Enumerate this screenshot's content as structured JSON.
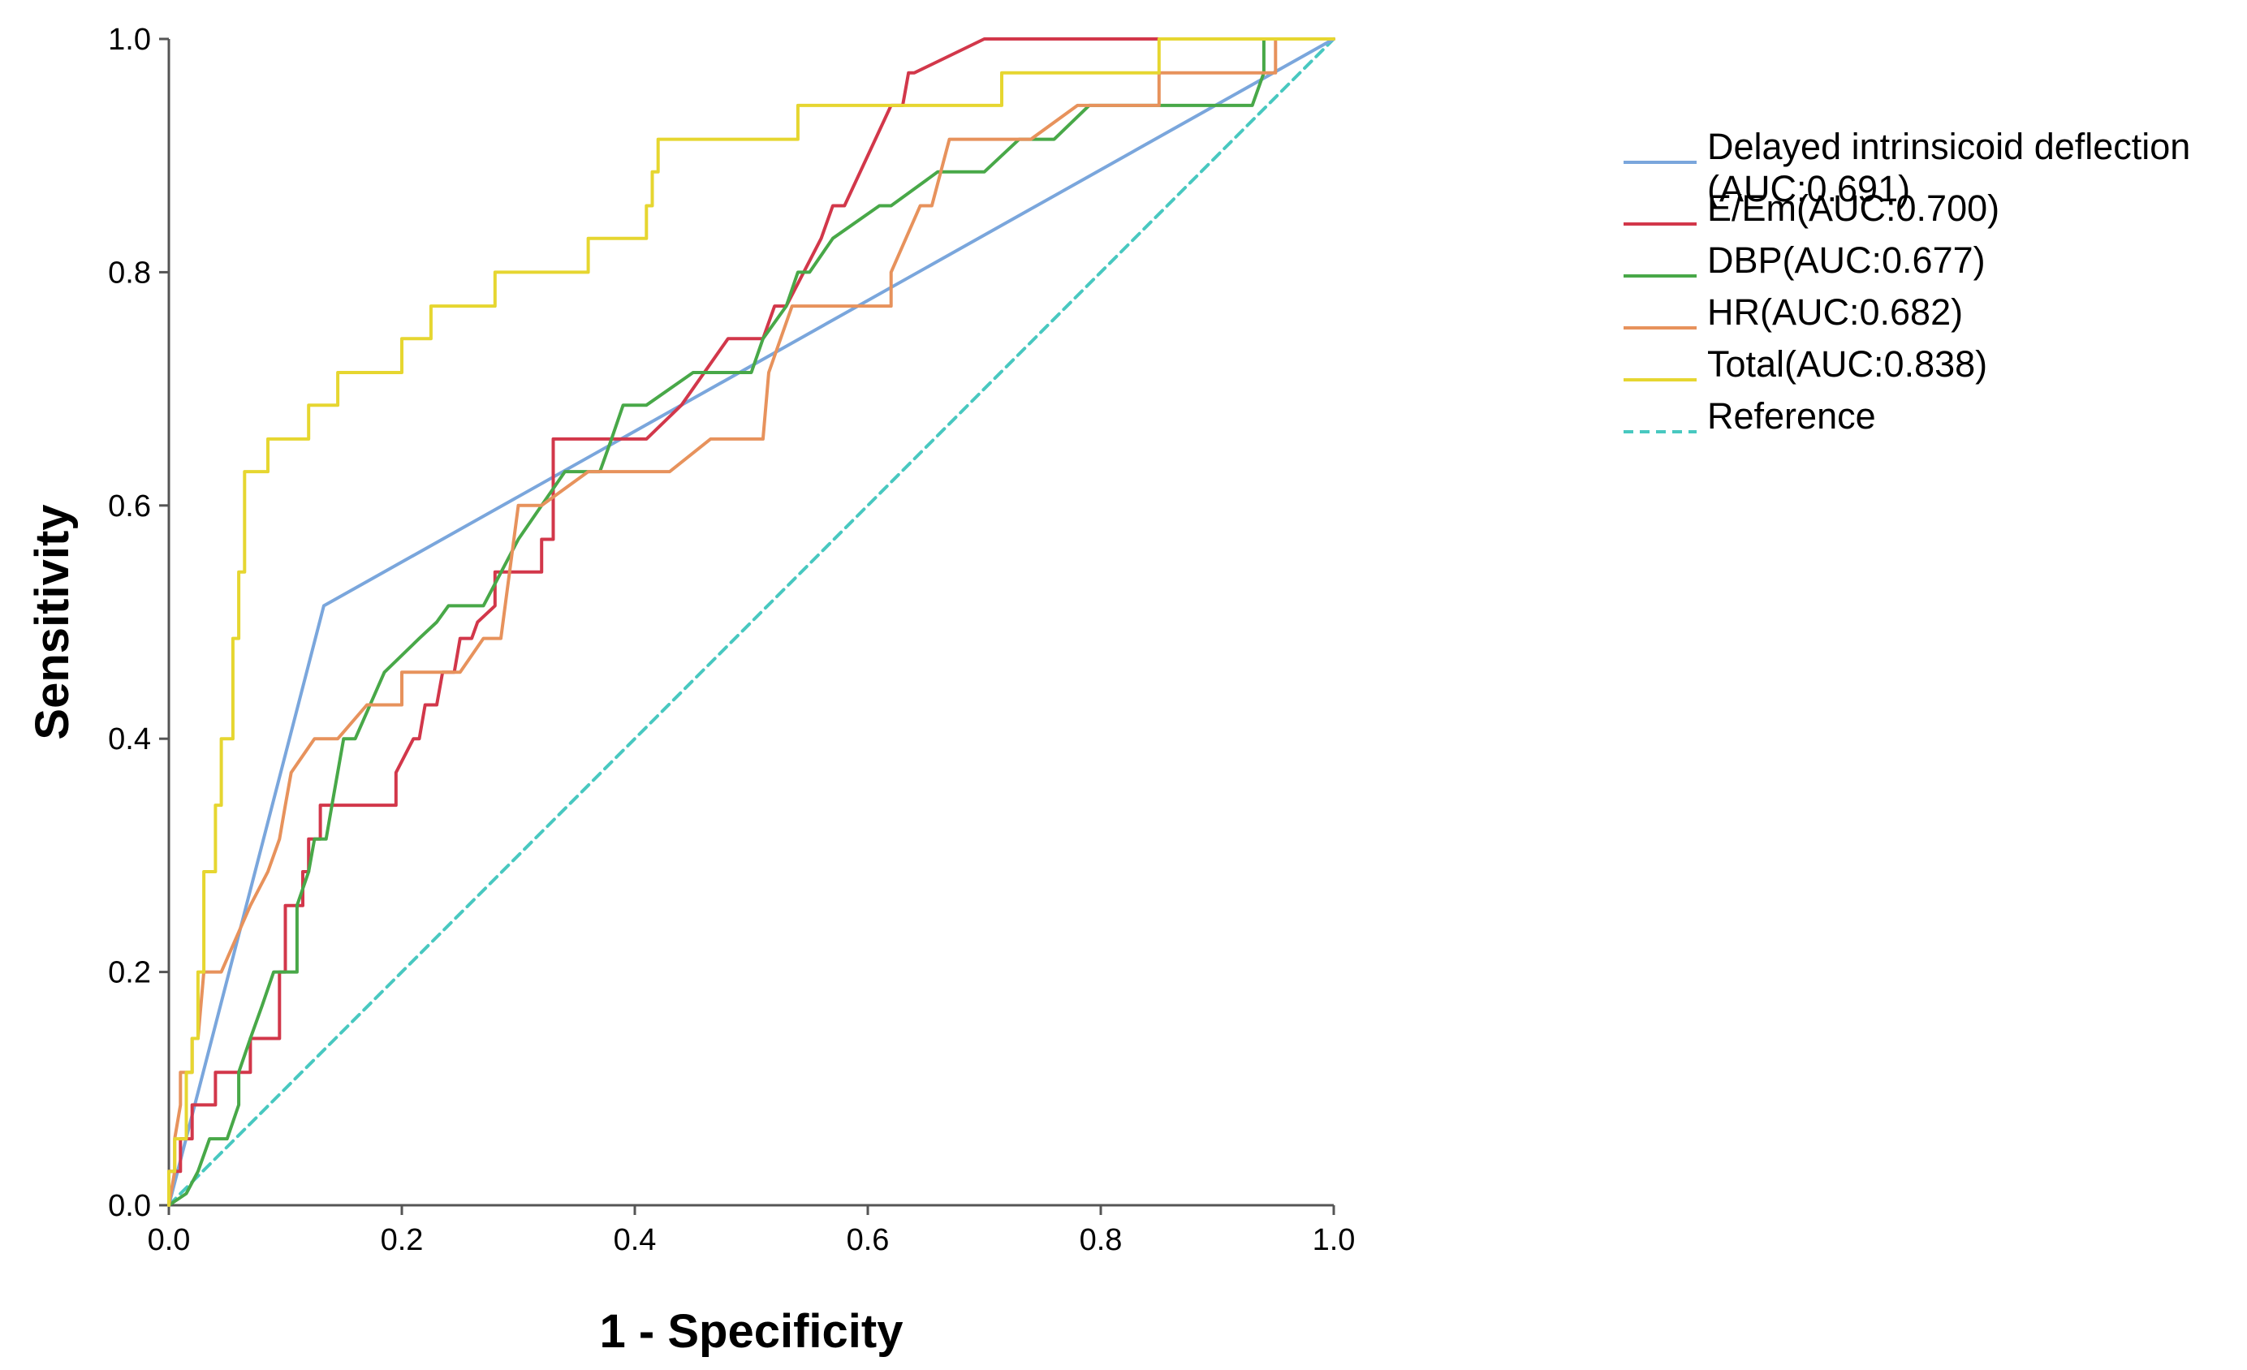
{
  "chart_data": {
    "type": "line",
    "title": "",
    "xlabel": "1 - Specificity",
    "ylabel": "Sensitivity",
    "xlim": [
      0,
      1
    ],
    "ylim": [
      0,
      1
    ],
    "x_ticks": [
      "0.0",
      "0.2",
      "0.4",
      "0.6",
      "0.8",
      "1.0"
    ],
    "y_ticks": [
      "0.0",
      "0.2",
      "0.4",
      "0.6",
      "0.8",
      "1.0"
    ],
    "grid": false,
    "legend_position": "right",
    "series": [
      {
        "name": "Delayed intrinsicoid deflection",
        "name_line2": "(AUC:0.691)",
        "color": "#7aa6dc",
        "dash": false,
        "points": [
          [
            0,
            0
          ],
          [
            0.133,
            0.514
          ],
          [
            1,
            1
          ]
        ]
      },
      {
        "name": "E/Em(AUC:0.700)",
        "color": "#d2374a",
        "dash": false,
        "points": [
          [
            0,
            0
          ],
          [
            0,
            0.029
          ],
          [
            0.01,
            0.029
          ],
          [
            0.01,
            0.057
          ],
          [
            0.02,
            0.057
          ],
          [
            0.02,
            0.086
          ],
          [
            0.04,
            0.086
          ],
          [
            0.04,
            0.114
          ],
          [
            0.07,
            0.114
          ],
          [
            0.07,
            0.143
          ],
          [
            0.095,
            0.143
          ],
          [
            0.095,
            0.2
          ],
          [
            0.1,
            0.2
          ],
          [
            0.1,
            0.257
          ],
          [
            0.115,
            0.257
          ],
          [
            0.115,
            0.286
          ],
          [
            0.12,
            0.286
          ],
          [
            0.12,
            0.314
          ],
          [
            0.13,
            0.314
          ],
          [
            0.13,
            0.343
          ],
          [
            0.195,
            0.343
          ],
          [
            0.195,
            0.371
          ],
          [
            0.21,
            0.4
          ],
          [
            0.215,
            0.4
          ],
          [
            0.22,
            0.429
          ],
          [
            0.23,
            0.429
          ],
          [
            0.235,
            0.457
          ],
          [
            0.245,
            0.457
          ],
          [
            0.25,
            0.486
          ],
          [
            0.26,
            0.486
          ],
          [
            0.265,
            0.5
          ],
          [
            0.28,
            0.514
          ],
          [
            0.28,
            0.543
          ],
          [
            0.3,
            0.543
          ],
          [
            0.32,
            0.543
          ],
          [
            0.32,
            0.571
          ],
          [
            0.33,
            0.571
          ],
          [
            0.33,
            0.657
          ],
          [
            0.39,
            0.657
          ],
          [
            0.41,
            0.657
          ],
          [
            0.44,
            0.686
          ],
          [
            0.48,
            0.743
          ],
          [
            0.51,
            0.743
          ],
          [
            0.52,
            0.771
          ],
          [
            0.53,
            0.771
          ],
          [
            0.56,
            0.829
          ],
          [
            0.57,
            0.857
          ],
          [
            0.58,
            0.857
          ],
          [
            0.62,
            0.943
          ],
          [
            0.63,
            0.943
          ],
          [
            0.635,
            0.971
          ],
          [
            0.64,
            0.971
          ],
          [
            0.7,
            1
          ],
          [
            1,
            1
          ]
        ]
      },
      {
        "name": "DBP(AUC:0.677)",
        "color": "#48a848",
        "dash": false,
        "points": [
          [
            0,
            0
          ],
          [
            0.015,
            0.01
          ],
          [
            0.025,
            0.029
          ],
          [
            0.035,
            0.057
          ],
          [
            0.05,
            0.057
          ],
          [
            0.06,
            0.086
          ],
          [
            0.06,
            0.114
          ],
          [
            0.07,
            0.143
          ],
          [
            0.08,
            0.171
          ],
          [
            0.09,
            0.2
          ],
          [
            0.11,
            0.2
          ],
          [
            0.11,
            0.257
          ],
          [
            0.12,
            0.286
          ],
          [
            0.125,
            0.314
          ],
          [
            0.135,
            0.314
          ],
          [
            0.14,
            0.343
          ],
          [
            0.15,
            0.4
          ],
          [
            0.16,
            0.4
          ],
          [
            0.185,
            0.457
          ],
          [
            0.215,
            0.486
          ],
          [
            0.23,
            0.5
          ],
          [
            0.24,
            0.514
          ],
          [
            0.27,
            0.514
          ],
          [
            0.3,
            0.571
          ],
          [
            0.34,
            0.629
          ],
          [
            0.37,
            0.629
          ],
          [
            0.38,
            0.657
          ],
          [
            0.39,
            0.686
          ],
          [
            0.41,
            0.686
          ],
          [
            0.45,
            0.714
          ],
          [
            0.5,
            0.714
          ],
          [
            0.51,
            0.743
          ],
          [
            0.53,
            0.771
          ],
          [
            0.54,
            0.8
          ],
          [
            0.55,
            0.8
          ],
          [
            0.57,
            0.829
          ],
          [
            0.61,
            0.857
          ],
          [
            0.62,
            0.857
          ],
          [
            0.66,
            0.886
          ],
          [
            0.7,
            0.886
          ],
          [
            0.73,
            0.914
          ],
          [
            0.76,
            0.914
          ],
          [
            0.79,
            0.943
          ],
          [
            0.93,
            0.943
          ],
          [
            0.94,
            0.971
          ],
          [
            0.94,
            1
          ],
          [
            1,
            1
          ]
        ]
      },
      {
        "name": "HR(AUC:0.682)",
        "color": "#e7925c",
        "dash": false,
        "points": [
          [
            0,
            0
          ],
          [
            0.005,
            0.029
          ],
          [
            0.005,
            0.057
          ],
          [
            0.01,
            0.086
          ],
          [
            0.01,
            0.114
          ],
          [
            0.02,
            0.114
          ],
          [
            0.02,
            0.143
          ],
          [
            0.025,
            0.143
          ],
          [
            0.03,
            0.2
          ],
          [
            0.045,
            0.2
          ],
          [
            0.07,
            0.257
          ],
          [
            0.085,
            0.286
          ],
          [
            0.095,
            0.314
          ],
          [
            0.1,
            0.343
          ],
          [
            0.105,
            0.371
          ],
          [
            0.125,
            0.4
          ],
          [
            0.145,
            0.4
          ],
          [
            0.17,
            0.429
          ],
          [
            0.2,
            0.429
          ],
          [
            0.2,
            0.457
          ],
          [
            0.25,
            0.457
          ],
          [
            0.27,
            0.486
          ],
          [
            0.285,
            0.486
          ],
          [
            0.3,
            0.6
          ],
          [
            0.32,
            0.6
          ],
          [
            0.36,
            0.629
          ],
          [
            0.43,
            0.629
          ],
          [
            0.465,
            0.657
          ],
          [
            0.51,
            0.657
          ],
          [
            0.515,
            0.714
          ],
          [
            0.535,
            0.771
          ],
          [
            0.62,
            0.771
          ],
          [
            0.62,
            0.8
          ],
          [
            0.645,
            0.857
          ],
          [
            0.655,
            0.857
          ],
          [
            0.67,
            0.914
          ],
          [
            0.74,
            0.914
          ],
          [
            0.78,
            0.943
          ],
          [
            0.85,
            0.943
          ],
          [
            0.85,
            0.971
          ],
          [
            0.95,
            0.971
          ],
          [
            0.95,
            1
          ],
          [
            1,
            1
          ]
        ]
      },
      {
        "name": "Total(AUC:0.838)",
        "color": "#e6d630",
        "dash": false,
        "points": [
          [
            0,
            0
          ],
          [
            0,
            0.029
          ],
          [
            0.005,
            0.029
          ],
          [
            0.005,
            0.057
          ],
          [
            0.015,
            0.057
          ],
          [
            0.015,
            0.114
          ],
          [
            0.02,
            0.114
          ],
          [
            0.02,
            0.143
          ],
          [
            0.025,
            0.143
          ],
          [
            0.025,
            0.2
          ],
          [
            0.03,
            0.2
          ],
          [
            0.03,
            0.286
          ],
          [
            0.04,
            0.286
          ],
          [
            0.04,
            0.343
          ],
          [
            0.045,
            0.343
          ],
          [
            0.045,
            0.4
          ],
          [
            0.055,
            0.4
          ],
          [
            0.055,
            0.486
          ],
          [
            0.06,
            0.486
          ],
          [
            0.06,
            0.543
          ],
          [
            0.065,
            0.543
          ],
          [
            0.065,
            0.629
          ],
          [
            0.085,
            0.629
          ],
          [
            0.085,
            0.657
          ],
          [
            0.12,
            0.657
          ],
          [
            0.12,
            0.686
          ],
          [
            0.145,
            0.686
          ],
          [
            0.145,
            0.714
          ],
          [
            0.2,
            0.714
          ],
          [
            0.2,
            0.743
          ],
          [
            0.225,
            0.743
          ],
          [
            0.225,
            0.771
          ],
          [
            0.28,
            0.771
          ],
          [
            0.28,
            0.8
          ],
          [
            0.36,
            0.8
          ],
          [
            0.36,
            0.829
          ],
          [
            0.41,
            0.829
          ],
          [
            0.41,
            0.857
          ],
          [
            0.415,
            0.857
          ],
          [
            0.415,
            0.886
          ],
          [
            0.42,
            0.886
          ],
          [
            0.42,
            0.914
          ],
          [
            0.54,
            0.914
          ],
          [
            0.54,
            0.943
          ],
          [
            0.715,
            0.943
          ],
          [
            0.715,
            0.971
          ],
          [
            0.85,
            0.971
          ],
          [
            0.85,
            1
          ],
          [
            1,
            1
          ]
        ]
      },
      {
        "name": "Reference",
        "color": "#48c8c0",
        "dash": true,
        "points": [
          [
            0,
            0
          ],
          [
            1,
            1
          ]
        ]
      }
    ]
  }
}
